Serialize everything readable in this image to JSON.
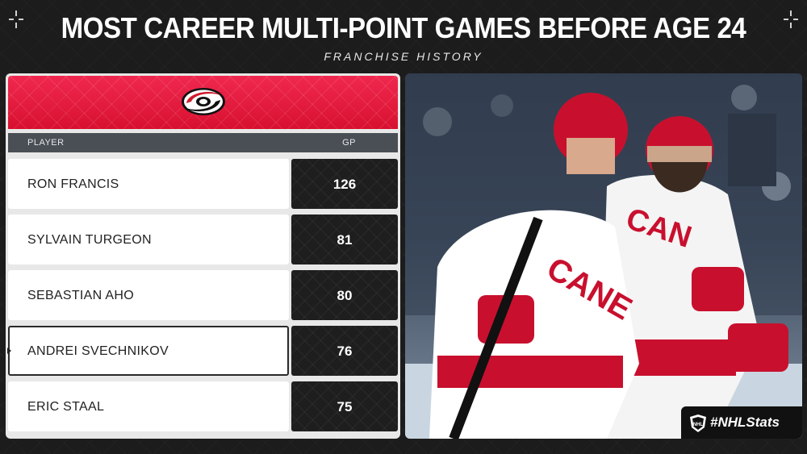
{
  "header": {
    "title": "MOST CAREER MULTI-POINT GAMES BEFORE AGE 24",
    "subtitle": "FRANCHISE HISTORY"
  },
  "team": {
    "logo_icon": "hurricanes-logo-icon",
    "banner_color": "#e5163a"
  },
  "table": {
    "columns": [
      "PLAYER",
      "GP"
    ],
    "rows": [
      {
        "player": "RON FRANCIS",
        "gp": "126"
      },
      {
        "player": "SYLVAIN TURGEON",
        "gp": "81"
      },
      {
        "player": "SEBASTIAN AHO",
        "gp": "80"
      },
      {
        "player": "ANDREI SVECHNIKOV",
        "gp": "76"
      },
      {
        "player": "ERIC STAAL",
        "gp": "75"
      }
    ],
    "highlight_row": 3
  },
  "badge": {
    "hashtag": "#NHLStats"
  }
}
